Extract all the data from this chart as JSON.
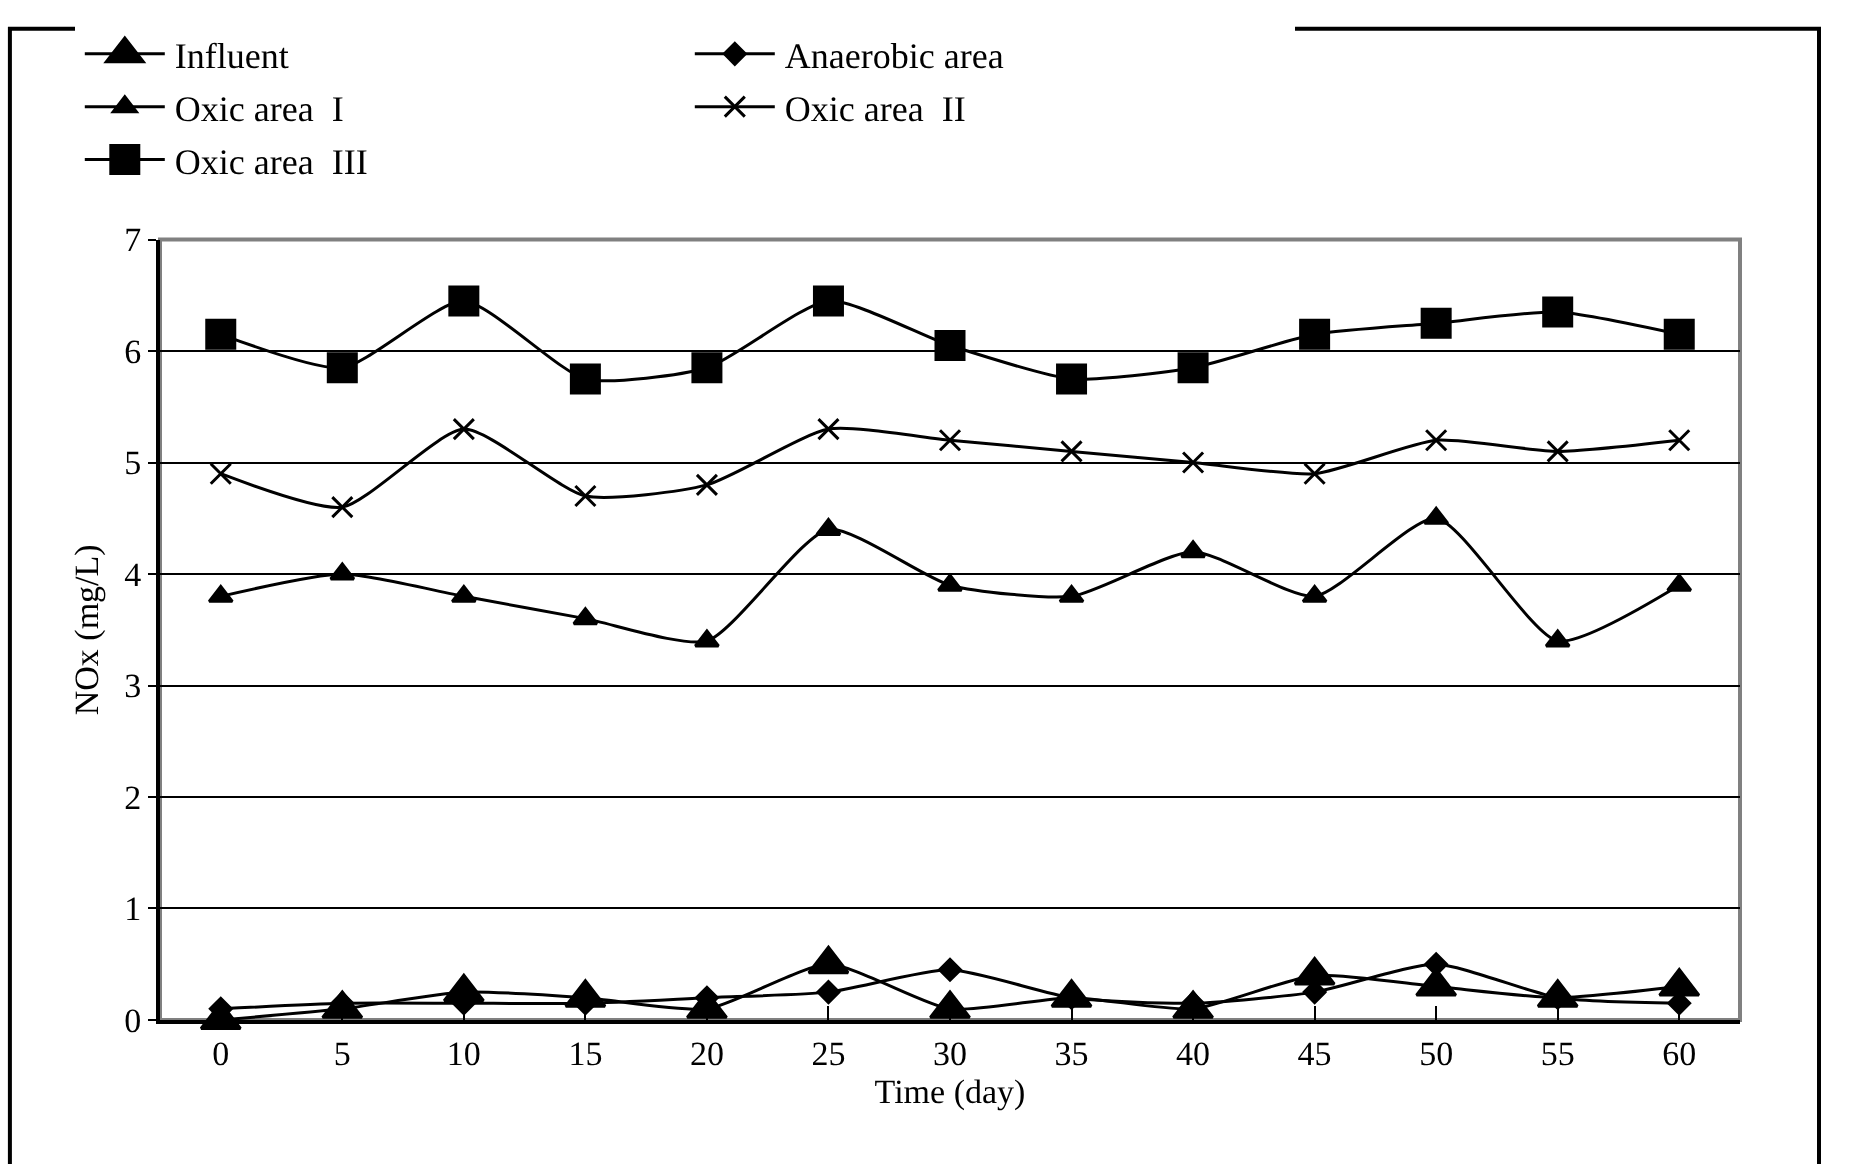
{
  "chart_data": {
    "type": "line",
    "xlabel": "Time (day)",
    "ylabel": "NOx (mg/L)",
    "x": [
      0,
      5,
      10,
      15,
      20,
      25,
      30,
      35,
      40,
      45,
      50,
      55,
      60
    ],
    "xlim": [
      -2.5,
      62.5
    ],
    "xticks": [
      0,
      5,
      10,
      15,
      20,
      25,
      30,
      35,
      40,
      45,
      50,
      55,
      60
    ],
    "ylim": [
      0,
      7
    ],
    "yticks": [
      0,
      1,
      2,
      3,
      4,
      5,
      6,
      7
    ],
    "grid": "y",
    "legend": "top",
    "line_style": "solid",
    "series": [
      {
        "name": "Influent",
        "color": "#000000",
        "marker": "triangle",
        "values": [
          0,
          0.1,
          0.25,
          0.2,
          0.1,
          0.5,
          0.1,
          0.2,
          0.1,
          0.4,
          0.3,
          0.2,
          0.3
        ]
      },
      {
        "name": "Anaerobic area",
        "color": "#000000",
        "marker": "diamond",
        "values": [
          0.1,
          0.15,
          0.15,
          0.15,
          0.2,
          0.25,
          0.45,
          0.2,
          0.15,
          0.25,
          0.5,
          0.2,
          0.15
        ]
      },
      {
        "name": "Oxic area  I",
        "color": "#000000",
        "marker": "triangle",
        "values": [
          3.8,
          4.0,
          3.8,
          3.6,
          3.4,
          4.4,
          3.9,
          3.8,
          4.2,
          3.8,
          4.5,
          3.4,
          3.9
        ]
      },
      {
        "name": "Oxic area  II",
        "color": "#000000",
        "marker": "cross",
        "values": [
          4.9,
          4.6,
          5.3,
          4.7,
          4.8,
          5.3,
          5.2,
          5.1,
          5.0,
          4.9,
          5.2,
          5.1,
          5.2
        ]
      },
      {
        "name": "Oxic area  III",
        "color": "#000000",
        "marker": "square",
        "values": [
          6.15,
          5.85,
          6.45,
          5.75,
          5.85,
          6.45,
          6.05,
          5.75,
          5.85,
          6.15,
          6.25,
          6.35,
          6.15
        ]
      }
    ]
  }
}
